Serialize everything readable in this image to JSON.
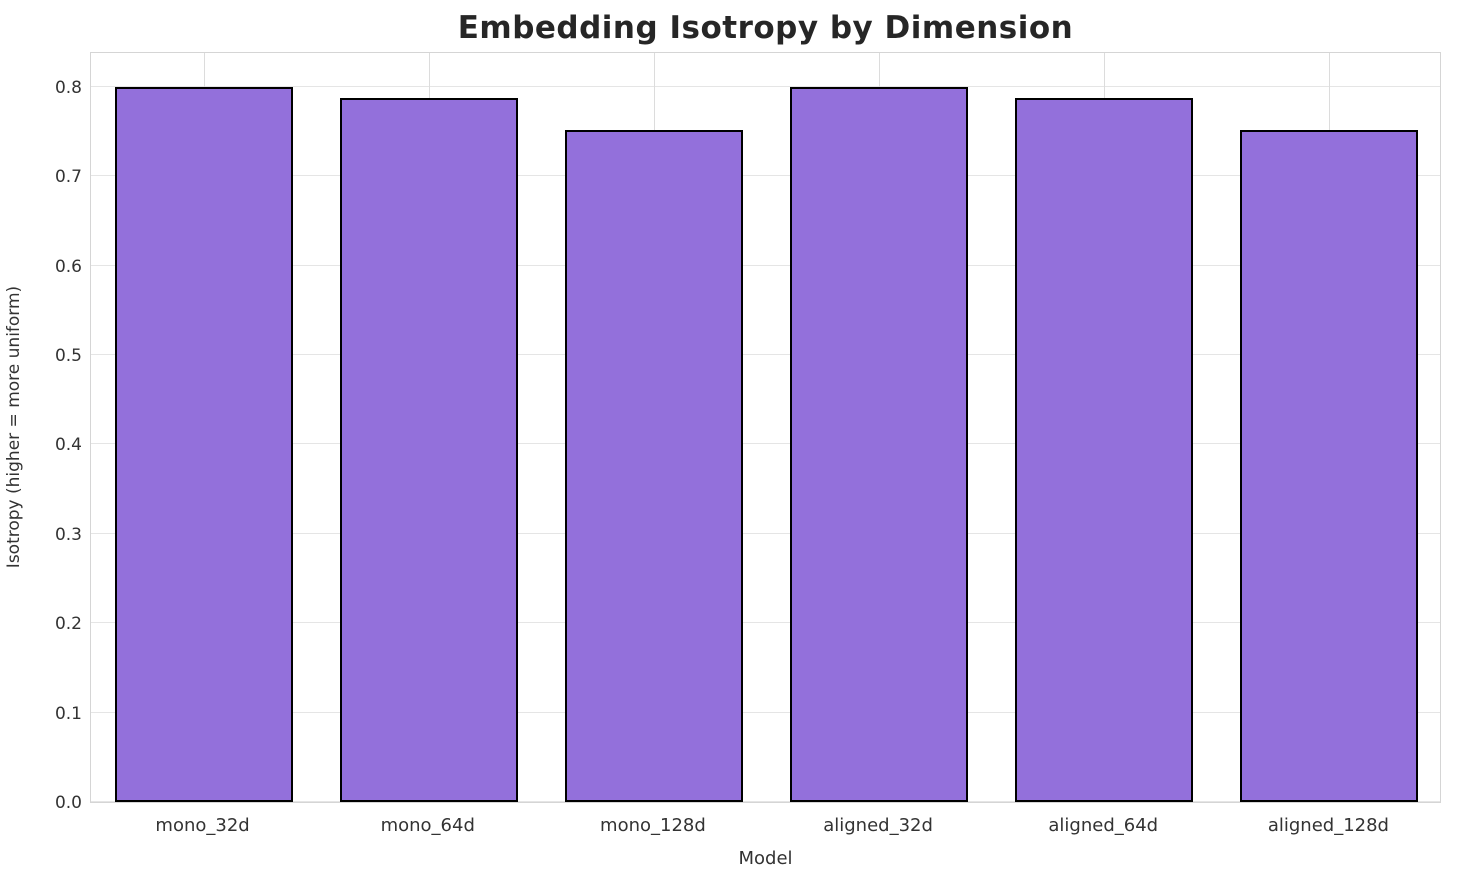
{
  "chart_data": {
    "type": "bar",
    "title": "Embedding Isotropy by Dimension",
    "xlabel": "Model",
    "ylabel": "Isotropy (higher = more uniform)",
    "categories": [
      "mono_32d",
      "mono_64d",
      "mono_128d",
      "aligned_32d",
      "aligned_64d",
      "aligned_128d"
    ],
    "values": [
      0.8,
      0.787,
      0.752,
      0.8,
      0.787,
      0.752
    ],
    "ylim": [
      0,
      0.84
    ],
    "yticks": [
      0.0,
      0.1,
      0.2,
      0.3,
      0.4,
      0.5,
      0.6,
      0.7,
      0.8
    ],
    "ytick_labels": [
      "0.0",
      "0.1",
      "0.2",
      "0.3",
      "0.4",
      "0.5",
      "0.6",
      "0.7",
      "0.8"
    ],
    "grid": true,
    "legend": null,
    "bar_color": "#9370DB",
    "bar_edge_color": "#000000",
    "grid_color": "#e5e5e5",
    "text_color": "#333333",
    "title_color": "#262626"
  }
}
